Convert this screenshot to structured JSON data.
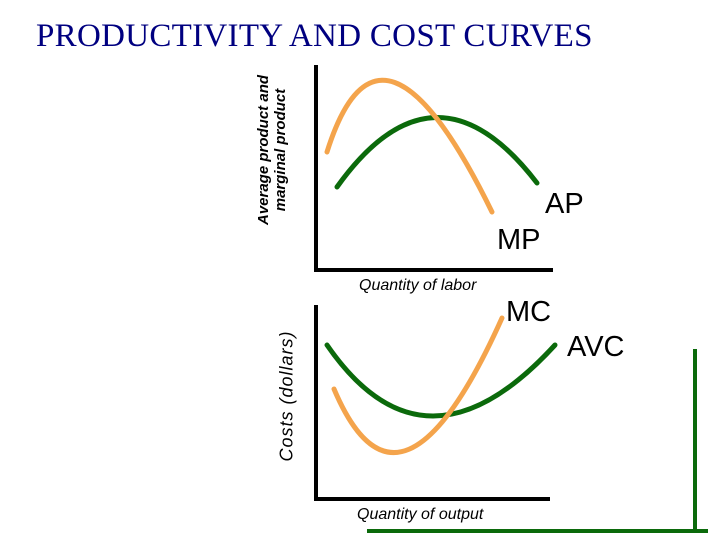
{
  "title": "PRODUCTIVITY AND COST CURVES",
  "top_panel": {
    "y_axis_label_line1": "Average product and",
    "y_axis_label_line2": "marginal product",
    "x_axis_label": "Quantity of labor",
    "curves": [
      {
        "id": "ap",
        "label": "AP",
        "color": "#0b6a0b"
      },
      {
        "id": "mp",
        "label": "MP",
        "color": "#f4a44c"
      }
    ]
  },
  "bottom_panel": {
    "y_axis_label": "Costs (dollars)",
    "x_axis_label": "Quantity of output",
    "curves": [
      {
        "id": "mc",
        "label": "MC",
        "color": "#f4a44c"
      },
      {
        "id": "avc",
        "label": "AVC",
        "color": "#0b6a0b"
      }
    ]
  },
  "colors": {
    "title": "#000080",
    "axis": "#000000",
    "green": "#0b6a0b",
    "orange": "#f4a44c"
  }
}
